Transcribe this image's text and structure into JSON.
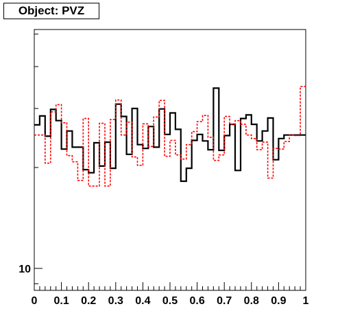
{
  "title": "Object: PVZ",
  "chart_data": {
    "type": "line",
    "title": "Object: PVZ",
    "xlabel": "",
    "ylabel": "",
    "xlim": [
      0,
      1
    ],
    "ylim": [
      8.6,
      51.6
    ],
    "yscale": "log",
    "grid": false,
    "x_ticks": [
      "0",
      "0.1",
      "0.2",
      "0.3",
      "0.4",
      "0.5",
      "0.6",
      "0.7",
      "0.8",
      "0.9",
      "1"
    ],
    "y_ticks": [
      "10"
    ],
    "bin_edges": [
      0,
      0.02,
      0.04,
      0.06,
      0.08,
      0.1,
      0.12,
      0.14,
      0.16,
      0.18,
      0.2,
      0.22,
      0.24,
      0.26,
      0.28,
      0.3,
      0.32,
      0.34,
      0.36,
      0.38,
      0.4,
      0.42,
      0.44,
      0.46,
      0.48,
      0.5,
      0.52,
      0.54,
      0.56,
      0.58,
      0.6,
      0.62,
      0.64,
      0.66,
      0.68,
      0.7,
      0.72,
      0.74,
      0.76,
      0.78,
      0.8,
      0.82,
      0.84,
      0.86,
      0.88,
      0.9,
      0.92,
      0.94,
      0.96,
      0.98,
      1
    ],
    "series": [
      {
        "color": "#000000",
        "style": "solid",
        "values": [
          26.8,
          28.5,
          24.8,
          29.8,
          27.6,
          22.7,
          25.7,
          23.0,
          23.0,
          19.7,
          19.3,
          23.7,
          20.2,
          23.8,
          19.9,
          30.9,
          28.4,
          21.9,
          30.0,
          23.4,
          22.8,
          26.5,
          23.0,
          29.9,
          25.1,
          29.1,
          26.0,
          18.2,
          19.9,
          24.1,
          25.1,
          24.0,
          22.6,
          34.5,
          22.5,
          24.9,
          26.9,
          19.6,
          28.0,
          28.7,
          26.9,
          24.0,
          25.7,
          28.1,
          21.1,
          24.4,
          25.0,
          25.0,
          25.0,
          25.0
        ]
      },
      {
        "color": "#ff0000",
        "style": "dashed",
        "values": [
          25.0,
          25.0,
          20.6,
          29.3,
          30.8,
          27.2,
          21.7,
          20.8,
          18.3,
          28.0,
          17.6,
          17.6,
          27.1,
          17.6,
          27.8,
          31.8,
          25.0,
          27.3,
          21.5,
          20.3,
          27.0,
          23.1,
          28.3,
          31.7,
          21.6,
          24.1,
          21.8,
          21.2,
          23.4,
          25.6,
          27.4,
          28.6,
          24.6,
          21.0,
          21.8,
          28.4,
          26.9,
          27.6,
          26.9,
          25.0,
          24.4,
          22.6,
          23.8,
          18.6,
          22.8,
          22.7,
          23.9,
          25.0,
          24.9,
          34.9
        ]
      }
    ]
  }
}
